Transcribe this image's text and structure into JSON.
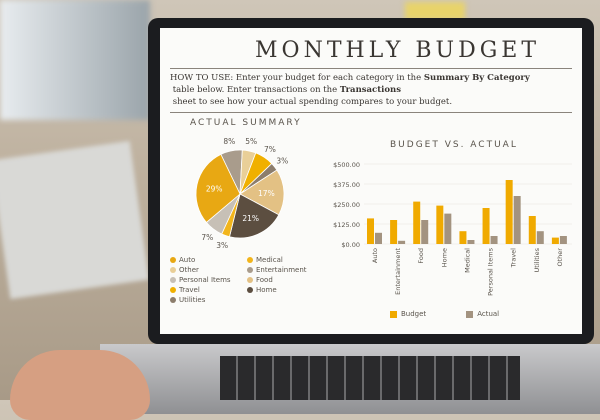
{
  "sheet": {
    "title": "MONTHLY BUDGET",
    "howto_prefix": "HOW TO USE: Enter your budget for each category in the ",
    "howto_bold1": "Summary By Category",
    "howto_mid": " table below. Enter transactions on the ",
    "howto_bold2": "Transactions",
    "howto_suffix": " sheet to see how your actual spending compares to your budget."
  },
  "colors": {
    "auto": "#e8a813",
    "medical": "#f2b51c",
    "other": "#e9cf98",
    "entertainment": "#a99c8c",
    "personal": "#c7c0b6",
    "food": "#e3c184",
    "travel": "#f0b000",
    "home": "#5c4e40",
    "utilities": "#8c7d6c",
    "budget": "#f0aa00",
    "actual": "#a39380"
  },
  "chart_data": [
    {
      "type": "pie",
      "title": "ACTUAL SUMMARY",
      "slices": [
        {
          "label": "Entertainment",
          "value": 8,
          "text": "8%",
          "color": "#a99c8c"
        },
        {
          "label": "Other",
          "value": 5,
          "text": "5%",
          "color": "#e9cf98"
        },
        {
          "label": "Travel",
          "value": 7,
          "text": "7%",
          "color": "#f0b000"
        },
        {
          "label": "Utilities",
          "value": 3,
          "text": "3%",
          "color": "#8c7d6c"
        },
        {
          "label": "Food",
          "value": 17,
          "text": "17%",
          "color": "#e3c184"
        },
        {
          "label": "Home",
          "value": 21,
          "text": "21%",
          "color": "#5c4e40"
        },
        {
          "label": "Medical",
          "value": 3,
          "text": "3%",
          "color": "#f2b51c"
        },
        {
          "label": "Personal Items",
          "value": 7,
          "text": "7%",
          "color": "#c7c0b6"
        },
        {
          "label": "Auto",
          "value": 29,
          "text": "29%",
          "color": "#e8a813"
        }
      ],
      "legend": [
        "Auto",
        "Medical",
        "Other",
        "Entertainment",
        "Personal Items",
        "Food",
        "Travel",
        "Home",
        "Utilities"
      ]
    },
    {
      "type": "bar",
      "title": "BUDGET VS. ACTUAL",
      "categories": [
        "Auto",
        "Entertainment",
        "Food",
        "Home",
        "Medical",
        "Personal Items",
        "Travel",
        "Utilities",
        "Other"
      ],
      "series": [
        {
          "name": "Budget",
          "values": [
            160,
            150,
            265,
            240,
            80,
            225,
            400,
            175,
            40
          ]
        },
        {
          "name": "Actual",
          "values": [
            70,
            20,
            150,
            190,
            25,
            50,
            300,
            80,
            50
          ]
        }
      ],
      "ylim": [
        0,
        500
      ],
      "yticks": [
        "$0.00",
        "$125.00",
        "$250.00",
        "$375.00",
        "$500.00"
      ],
      "grid": true,
      "legend_placement": "bottom"
    }
  ]
}
